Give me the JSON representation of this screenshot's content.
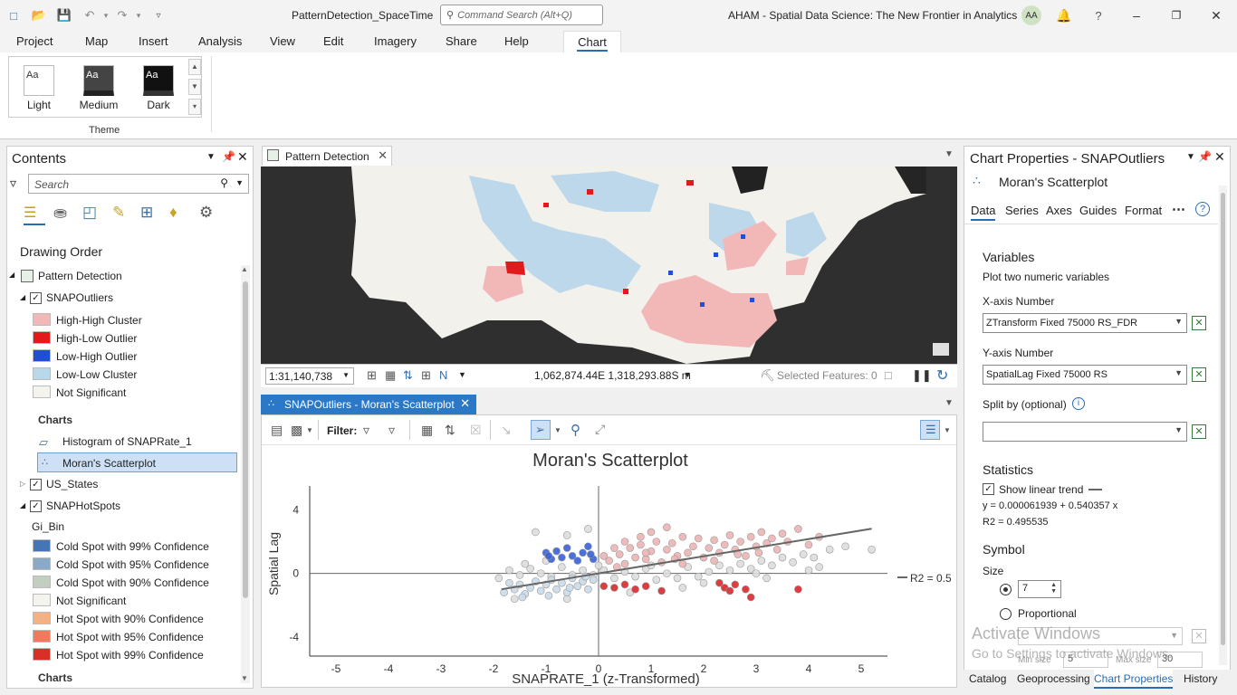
{
  "titlebar": {
    "project": "PatternDetection_SpaceTime",
    "command_search_placeholder": "Command Search (Alt+Q)",
    "app_title": "AHAM - Spatial Data Science:  The New Frontier in Analytics",
    "user_initials": "AA"
  },
  "ribbon": {
    "tabs": [
      "Project",
      "Map",
      "Insert",
      "Analysis",
      "View",
      "Edit",
      "Imagery",
      "Share",
      "Help"
    ],
    "active_tab": "Chart",
    "themes": [
      {
        "label": "Light",
        "swatch_text": "Aa"
      },
      {
        "label": "Medium",
        "swatch_text": "Aa"
      },
      {
        "label": "Dark",
        "swatch_text": "Aa"
      }
    ],
    "theme_group_label": "Theme"
  },
  "contents": {
    "title": "Contents",
    "search_placeholder": "Search",
    "drawing_order": "Drawing Order",
    "map_name": "Pattern Detection",
    "layer1": "SNAPOutliers",
    "outlier_legend": [
      {
        "label": "High-High Cluster",
        "color": "#f2b8b8"
      },
      {
        "label": "High-Low Outlier",
        "color": "#e31a1c"
      },
      {
        "label": "Low-High Outlier",
        "color": "#1f4fd8"
      },
      {
        "label": "Low-Low Cluster",
        "color": "#b9d8e9"
      },
      {
        "label": "Not Significant",
        "color": "#f5f3ee"
      }
    ],
    "charts_heading": "Charts",
    "charts": [
      "Histogram of SNAPRate_1",
      "Moran's Scatterplot"
    ],
    "layer2": "US_States",
    "layer3": "SNAPHotSpots",
    "field": "Gi_Bin",
    "hotspot_legend": [
      {
        "label": "Cold Spot with 99% Confidence",
        "color": "#4575b4"
      },
      {
        "label": "Cold Spot with 95% Confidence",
        "color": "#8aa9c8"
      },
      {
        "label": "Cold Spot with 90% Confidence",
        "color": "#c3cdc0"
      },
      {
        "label": "Not Significant",
        "color": "#f5f3ee"
      },
      {
        "label": "Hot Spot with 90% Confidence",
        "color": "#f4b183"
      },
      {
        "label": "Hot Spot with 95% Confidence",
        "color": "#ee7b5b"
      },
      {
        "label": "Hot Spot with 99% Confidence",
        "color": "#d73027"
      }
    ],
    "charts_heading2": "Charts"
  },
  "map_view": {
    "tab": "Pattern Detection",
    "scale": "1:31,140,738",
    "coordinates": "1,062,874.44E 1,318,293.88S m",
    "selected": "Selected Features: 0"
  },
  "chart_view": {
    "tab": "SNAPOutliers - Moran's Scatterplot",
    "filter_label": "Filter:"
  },
  "chart_data": {
    "type": "scatter",
    "title": "Moran's Scatterplot",
    "xlabel": "SNAPRATE_1 (z-Transformed)",
    "ylabel": "Spatial Lag",
    "xlim": [
      -5.5,
      5.5
    ],
    "ylim": [
      -5.2,
      5.5
    ],
    "xticks": [
      -5,
      -4,
      -3,
      -2,
      -1,
      0,
      1,
      2,
      3,
      4,
      5
    ],
    "yticks": [
      -4,
      0,
      4
    ],
    "trend_line": {
      "intercept": 6.1939e-05,
      "slope": 0.540357,
      "x_range": [
        -1.85,
        5.2
      ],
      "legend_label": "R2 = 0.5"
    },
    "series": [
      {
        "name": "High-High Cluster",
        "color": "#ecb4b4",
        "points": [
          [
            0.2,
            0.8
          ],
          [
            0.4,
            1.2
          ],
          [
            0.5,
            0.6
          ],
          [
            0.6,
            1.6
          ],
          [
            0.7,
            1.0
          ],
          [
            0.8,
            1.8
          ],
          [
            0.9,
            0.9
          ],
          [
            1.0,
            1.4
          ],
          [
            1.1,
            2.0
          ],
          [
            1.2,
            0.7
          ],
          [
            1.3,
            1.5
          ],
          [
            1.4,
            1.9
          ],
          [
            1.5,
            1.1
          ],
          [
            1.6,
            2.3
          ],
          [
            1.7,
            1.3
          ],
          [
            1.8,
            1.7
          ],
          [
            1.9,
            2.2
          ],
          [
            2.0,
            1.0
          ],
          [
            2.1,
            1.6
          ],
          [
            2.2,
            2.1
          ],
          [
            2.3,
            1.3
          ],
          [
            2.4,
            1.8
          ],
          [
            2.5,
            2.4
          ],
          [
            2.6,
            1.5
          ],
          [
            2.7,
            2.0
          ],
          [
            2.8,
            1.1
          ],
          [
            2.9,
            2.3
          ],
          [
            3.0,
            1.7
          ],
          [
            3.1,
            2.6
          ],
          [
            3.2,
            1.9
          ],
          [
            3.3,
            2.2
          ],
          [
            3.4,
            1.5
          ],
          [
            3.5,
            2.5
          ],
          [
            3.6,
            2.0
          ],
          [
            3.8,
            2.8
          ],
          [
            4.0,
            1.8
          ],
          [
            4.2,
            2.3
          ],
          [
            0.3,
            1.6
          ],
          [
            0.5,
            2.0
          ],
          [
            0.8,
            2.3
          ],
          [
            1.0,
            2.6
          ],
          [
            1.3,
            2.9
          ],
          [
            0.1,
            1.1
          ],
          [
            0.35,
            0.4
          ],
          [
            1.6,
            0.6
          ],
          [
            2.2,
            0.8
          ],
          [
            0.9,
            1.3
          ],
          [
            1.45,
            0.9
          ],
          [
            2.65,
            1.2
          ],
          [
            3.05,
            1.3
          ]
        ]
      },
      {
        "name": "Low-Low Cluster",
        "color": "#c9dce9",
        "points": [
          [
            -1.8,
            -1.2
          ],
          [
            -1.6,
            -1.0
          ],
          [
            -1.5,
            -0.7
          ],
          [
            -1.4,
            -1.3
          ],
          [
            -1.3,
            -0.9
          ],
          [
            -1.2,
            -0.5
          ],
          [
            -1.1,
            -1.1
          ],
          [
            -1.0,
            -0.7
          ],
          [
            -0.9,
            -0.4
          ],
          [
            -0.8,
            -1.0
          ],
          [
            -0.7,
            -0.6
          ],
          [
            -0.6,
            -1.2
          ],
          [
            -0.5,
            -0.3
          ],
          [
            -0.4,
            -0.8
          ],
          [
            -0.3,
            -0.5
          ],
          [
            -0.2,
            -1.0
          ],
          [
            -0.1,
            -0.4
          ],
          [
            -1.7,
            -0.6
          ],
          [
            -1.45,
            -1.5
          ],
          [
            -0.95,
            -1.4
          ],
          [
            -0.55,
            -0.9
          ],
          [
            -0.25,
            -0.2
          ]
        ]
      },
      {
        "name": "Low-High Outlier",
        "color": "#3a5fd6",
        "points": [
          [
            -1.0,
            1.3
          ],
          [
            -0.9,
            0.9
          ],
          [
            -0.8,
            1.4
          ],
          [
            -0.7,
            1.0
          ],
          [
            -0.6,
            1.6
          ],
          [
            -0.5,
            1.1
          ],
          [
            -0.4,
            0.8
          ],
          [
            -0.3,
            1.3
          ],
          [
            -0.2,
            1.7
          ],
          [
            -0.1,
            0.9
          ],
          [
            -0.95,
            1.1
          ],
          [
            -0.15,
            1.2
          ]
        ]
      },
      {
        "name": "High-Low Outlier",
        "color": "#d9282b",
        "points": [
          [
            0.1,
            -0.8
          ],
          [
            0.3,
            -0.9
          ],
          [
            0.5,
            -0.7
          ],
          [
            0.7,
            -1.0
          ],
          [
            0.9,
            -0.8
          ],
          [
            1.2,
            -1.1
          ],
          [
            2.3,
            -0.6
          ],
          [
            2.4,
            -0.9
          ],
          [
            2.5,
            -1.1
          ],
          [
            2.6,
            -0.7
          ],
          [
            2.8,
            -1.0
          ],
          [
            3.8,
            -1.0
          ],
          [
            2.9,
            -1.5
          ]
        ]
      },
      {
        "name": "Not Significant",
        "color": "#dddddd",
        "points": [
          [
            -1.9,
            -0.3
          ],
          [
            -1.7,
            0.2
          ],
          [
            -1.5,
            -0.1
          ],
          [
            -1.3,
            0.3
          ],
          [
            -1.1,
            0.0
          ],
          [
            -0.9,
            -0.2
          ],
          [
            -0.7,
            0.4
          ],
          [
            -0.5,
            -0.1
          ],
          [
            -0.3,
            0.2
          ],
          [
            -0.1,
            -0.1
          ],
          [
            0.1,
            0.2
          ],
          [
            0.3,
            -0.3
          ],
          [
            0.5,
            0.1
          ],
          [
            0.7,
            -0.2
          ],
          [
            0.9,
            0.3
          ],
          [
            1.1,
            -0.4
          ],
          [
            1.3,
            0.0
          ],
          [
            1.5,
            -0.3
          ],
          [
            1.7,
            0.4
          ],
          [
            1.9,
            -0.2
          ],
          [
            2.1,
            0.1
          ],
          [
            2.3,
            0.5
          ],
          [
            2.5,
            0.2
          ],
          [
            2.7,
            0.6
          ],
          [
            2.9,
            0.3
          ],
          [
            3.1,
            0.8
          ],
          [
            3.3,
            0.5
          ],
          [
            3.5,
            1.0
          ],
          [
            3.7,
            0.7
          ],
          [
            3.9,
            1.2
          ],
          [
            4.1,
            1.0
          ],
          [
            4.4,
            1.5
          ],
          [
            4.7,
            1.7
          ],
          [
            5.2,
            1.5
          ],
          [
            -1.2,
            2.6
          ],
          [
            -0.6,
            2.4
          ],
          [
            -0.2,
            2.8
          ],
          [
            -1.6,
            -1.6
          ],
          [
            -0.6,
            -1.6
          ],
          [
            0.6,
            -1.2
          ],
          [
            1.6,
            -0.9
          ],
          [
            3.2,
            -0.3
          ],
          [
            4.2,
            0.4
          ],
          [
            -1.0,
            0.8
          ],
          [
            -1.4,
            0.6
          ],
          [
            0.0,
            0.5
          ],
          [
            1.0,
            0.5
          ],
          [
            2.0,
            -0.6
          ],
          [
            3.0,
            0.0
          ],
          [
            4.0,
            0.2
          ]
        ]
      }
    ]
  },
  "properties": {
    "title": "Chart Properties - SNAPOutliers",
    "chart_name": "Moran's Scatterplot",
    "tabs": [
      "Data",
      "Series",
      "Axes",
      "Guides",
      "Format"
    ],
    "variables_heading": "Variables",
    "variables_desc": "Plot two numeric variables",
    "x_label": "X-axis Number",
    "x_value": "ZTransform Fixed 75000 RS_FDR",
    "y_label": "Y-axis Number",
    "y_value": "SpatialLag Fixed 75000 RS",
    "split_label": "Split by (optional)",
    "split_value": "",
    "statistics_heading": "Statistics",
    "show_trend": "Show linear trend",
    "equation": "y = 0.000061939 + 0.540357 x",
    "r2": "R2 = 0.495535",
    "symbol_heading": "Symbol",
    "size_label": "Size",
    "size_value": "7",
    "proportional_label": "Proportional",
    "min_size_label": "Min size",
    "min_size_value": "5",
    "max_size_label": "Max size",
    "max_size_value": "30",
    "bottom_tabs": [
      "Catalog",
      "Geoprocessing",
      "Chart Properties",
      "History"
    ]
  },
  "watermark": {
    "line1": "Activate Windows",
    "line2": "Go to Settings to activate Windows."
  }
}
